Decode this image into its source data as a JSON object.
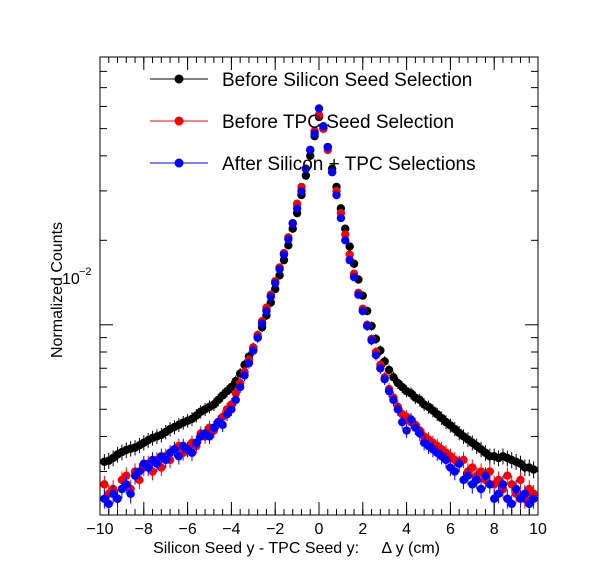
{
  "chart_data": {
    "type": "scatter",
    "xlabel": "Silicon Seed y - TPC Seed y:     Δ y (cm)",
    "ylabel": "Normalized Counts",
    "xlim": [
      -10,
      10
    ],
    "ylim": [
      0.0021,
      0.09
    ],
    "y_scale": "log",
    "x_ticks": [
      -10,
      -8,
      -6,
      -4,
      -2,
      0,
      2,
      4,
      6,
      8,
      10
    ],
    "x_tick_labels": [
      "−10",
      "−8",
      "−6",
      "−4",
      "−2",
      "0",
      "2",
      "4",
      "6",
      "8",
      "10"
    ],
    "y_tick_label": {
      "value": 0.01,
      "base": "10",
      "exponent": "−2"
    },
    "grid": false,
    "legend_position": "top-right",
    "series": [
      {
        "name": "Before Silicon Seed Selection",
        "color": "#000000",
        "x": [
          -9.8,
          -9.6,
          -9.4,
          -9.2,
          -9.0,
          -8.8,
          -8.6,
          -8.4,
          -8.2,
          -8.0,
          -7.8,
          -7.6,
          -7.4,
          -7.2,
          -7.0,
          -6.8,
          -6.6,
          -6.4,
          -6.2,
          -6.0,
          -5.8,
          -5.6,
          -5.4,
          -5.2,
          -5.0,
          -4.8,
          -4.6,
          -4.4,
          -4.2,
          -4.0,
          -3.8,
          -3.6,
          -3.4,
          -3.2,
          -3.0,
          -2.8,
          -2.6,
          -2.4,
          -2.2,
          -2.0,
          -1.8,
          -1.6,
          -1.4,
          -1.2,
          -1.0,
          -0.8,
          -0.6,
          -0.4,
          -0.2,
          0.0,
          0.2,
          0.4,
          0.6,
          0.8,
          1.0,
          1.2,
          1.4,
          1.6,
          1.8,
          2.0,
          2.2,
          2.4,
          2.6,
          2.8,
          3.0,
          3.2,
          3.4,
          3.6,
          3.8,
          4.0,
          4.2,
          4.4,
          4.6,
          4.8,
          5.0,
          5.2,
          5.4,
          5.6,
          5.8,
          6.0,
          6.2,
          6.4,
          6.6,
          6.8,
          7.0,
          7.2,
          7.4,
          7.6,
          7.8,
          8.0,
          8.2,
          8.4,
          8.6,
          8.8,
          9.0,
          9.2,
          9.4,
          9.6,
          9.8
        ],
        "y": [
          0.00325,
          0.00328,
          0.00335,
          0.00345,
          0.00352,
          0.00358,
          0.00362,
          0.00365,
          0.00372,
          0.0038,
          0.00388,
          0.00395,
          0.004,
          0.00405,
          0.00415,
          0.00425,
          0.00432,
          0.0044,
          0.00448,
          0.00455,
          0.00462,
          0.00475,
          0.0049,
          0.005,
          0.0051,
          0.0052,
          0.0054,
          0.0056,
          0.0058,
          0.006,
          0.0063,
          0.0067,
          0.0072,
          0.0077,
          0.0083,
          0.009,
          0.0098,
          0.0108,
          0.012,
          0.0134,
          0.015,
          0.017,
          0.0192,
          0.022,
          0.025,
          0.029,
          0.034,
          0.04,
          0.047,
          0.055,
          0.05,
          0.043,
          0.036,
          0.031,
          0.026,
          0.022,
          0.019,
          0.0165,
          0.0145,
          0.0127,
          0.0112,
          0.0099,
          0.0089,
          0.0081,
          0.0074,
          0.0069,
          0.0065,
          0.0062,
          0.006,
          0.0058,
          0.0057,
          0.0055,
          0.0054,
          0.0052,
          0.0051,
          0.00495,
          0.0048,
          0.00465,
          0.0045,
          0.00438,
          0.00425,
          0.00412,
          0.004,
          0.0039,
          0.0038,
          0.0037,
          0.0036,
          0.0035,
          0.0034,
          0.0034,
          0.00335,
          0.0034,
          0.00335,
          0.0033,
          0.00325,
          0.0032,
          0.0031,
          0.0031,
          0.00305
        ]
      },
      {
        "name": "Before TPC Seed Selection",
        "color": "#ff0000",
        "x": [
          -9.8,
          -9.6,
          -9.4,
          -9.2,
          -9.0,
          -8.8,
          -8.6,
          -8.4,
          -8.2,
          -8.0,
          -7.8,
          -7.6,
          -7.4,
          -7.2,
          -7.0,
          -6.8,
          -6.6,
          -6.4,
          -6.2,
          -6.0,
          -5.8,
          -5.6,
          -5.4,
          -5.2,
          -5.0,
          -4.8,
          -4.6,
          -4.4,
          -4.2,
          -4.0,
          -3.8,
          -3.6,
          -3.4,
          -3.2,
          -3.0,
          -2.8,
          -2.6,
          -2.4,
          -2.2,
          -2.0,
          -1.8,
          -1.6,
          -1.4,
          -1.2,
          -1.0,
          -0.8,
          -0.6,
          -0.4,
          -0.2,
          0.0,
          0.2,
          0.4,
          0.6,
          0.8,
          1.0,
          1.2,
          1.4,
          1.6,
          1.8,
          2.0,
          2.2,
          2.4,
          2.6,
          2.8,
          3.0,
          3.2,
          3.4,
          3.6,
          3.8,
          4.0,
          4.2,
          4.4,
          4.6,
          4.8,
          5.0,
          5.2,
          5.4,
          5.6,
          5.8,
          6.0,
          6.2,
          6.4,
          6.6,
          6.8,
          7.0,
          7.2,
          7.4,
          7.6,
          7.8,
          8.0,
          8.2,
          8.4,
          8.6,
          8.8,
          9.0,
          9.2,
          9.4,
          9.6,
          9.8
        ],
        "y": [
          0.0027,
          0.0025,
          0.0026,
          0.0024,
          0.0028,
          0.0029,
          0.0026,
          0.003,
          0.0028,
          0.0031,
          0.0032,
          0.003,
          0.0033,
          0.0031,
          0.0034,
          0.0033,
          0.0036,
          0.0037,
          0.0035,
          0.0036,
          0.0038,
          0.0037,
          0.0041,
          0.004,
          0.0043,
          0.0042,
          0.0045,
          0.0047,
          0.005,
          0.0052,
          0.0057,
          0.0062,
          0.0068,
          0.0075,
          0.0083,
          0.0092,
          0.0103,
          0.0115,
          0.0128,
          0.0143,
          0.016,
          0.018,
          0.0205,
          0.023,
          0.027,
          0.031,
          0.036,
          0.042,
          0.049,
          0.056,
          0.05,
          0.042,
          0.035,
          0.03,
          0.025,
          0.021,
          0.0178,
          0.0152,
          0.013,
          0.0114,
          0.01,
          0.0089,
          0.008,
          0.0072,
          0.0065,
          0.0059,
          0.0055,
          0.0051,
          0.0048,
          0.0047,
          0.0045,
          0.0044,
          0.0042,
          0.004,
          0.0039,
          0.0038,
          0.0037,
          0.0036,
          0.0035,
          0.0034,
          0.0033,
          0.0032,
          0.0033,
          0.003,
          0.0031,
          0.0029,
          0.003,
          0.0028,
          0.003,
          0.0027,
          0.0028,
          0.0026,
          0.0029,
          0.0027,
          0.0025,
          0.0028,
          0.0024,
          0.0026,
          0.0025
        ]
      },
      {
        "name": "After Silicon + TPC Selections",
        "color": "#0000ff",
        "x": [
          -9.8,
          -9.6,
          -9.4,
          -9.2,
          -9.0,
          -8.8,
          -8.6,
          -8.4,
          -8.2,
          -8.0,
          -7.8,
          -7.6,
          -7.4,
          -7.2,
          -7.0,
          -6.8,
          -6.6,
          -6.4,
          -6.2,
          -6.0,
          -5.8,
          -5.6,
          -5.4,
          -5.2,
          -5.0,
          -4.8,
          -4.6,
          -4.4,
          -4.2,
          -4.0,
          -3.8,
          -3.6,
          -3.4,
          -3.2,
          -3.0,
          -2.8,
          -2.6,
          -2.4,
          -2.2,
          -2.0,
          -1.8,
          -1.6,
          -1.4,
          -1.2,
          -1.0,
          -0.8,
          -0.6,
          -0.4,
          -0.2,
          0.0,
          0.2,
          0.4,
          0.6,
          0.8,
          1.0,
          1.2,
          1.4,
          1.6,
          1.8,
          2.0,
          2.2,
          2.4,
          2.6,
          2.8,
          3.0,
          3.2,
          3.4,
          3.6,
          3.8,
          4.0,
          4.2,
          4.4,
          4.6,
          4.8,
          5.0,
          5.2,
          5.4,
          5.6,
          5.8,
          6.0,
          6.2,
          6.4,
          6.6,
          6.8,
          7.0,
          7.2,
          7.4,
          7.6,
          7.8,
          8.0,
          8.2,
          8.4,
          8.6,
          8.8,
          9.0,
          9.2,
          9.4,
          9.6,
          9.8
        ],
        "y": [
          0.0024,
          0.0023,
          0.0025,
          0.0024,
          0.0026,
          0.0027,
          0.0025,
          0.0029,
          0.003,
          0.0032,
          0.0031,
          0.0033,
          0.0032,
          0.0034,
          0.0033,
          0.0035,
          0.0036,
          0.0034,
          0.0037,
          0.0036,
          0.0035,
          0.0038,
          0.004,
          0.0041,
          0.004,
          0.0043,
          0.0045,
          0.0044,
          0.0048,
          0.005,
          0.0054,
          0.006,
          0.0066,
          0.0073,
          0.0081,
          0.009,
          0.0101,
          0.0112,
          0.0126,
          0.0141,
          0.0158,
          0.0178,
          0.0202,
          0.023,
          0.026,
          0.03,
          0.036,
          0.042,
          0.048,
          0.059,
          0.051,
          0.043,
          0.035,
          0.029,
          0.024,
          0.02,
          0.017,
          0.0148,
          0.0128,
          0.0112,
          0.0099,
          0.0088,
          0.0078,
          0.007,
          0.0064,
          0.0058,
          0.0054,
          0.005,
          0.0045,
          0.0042,
          0.0046,
          0.0043,
          0.0041,
          0.0038,
          0.0037,
          0.0036,
          0.0035,
          0.0034,
          0.0033,
          0.0031,
          0.003,
          0.0032,
          0.0028,
          0.0029,
          0.0027,
          0.0028,
          0.0026,
          0.0029,
          0.0027,
          0.0024,
          0.0025,
          0.0027,
          0.0024,
          0.0023,
          0.0026,
          0.0024,
          0.0025,
          0.0023,
          0.0024
        ]
      }
    ]
  }
}
